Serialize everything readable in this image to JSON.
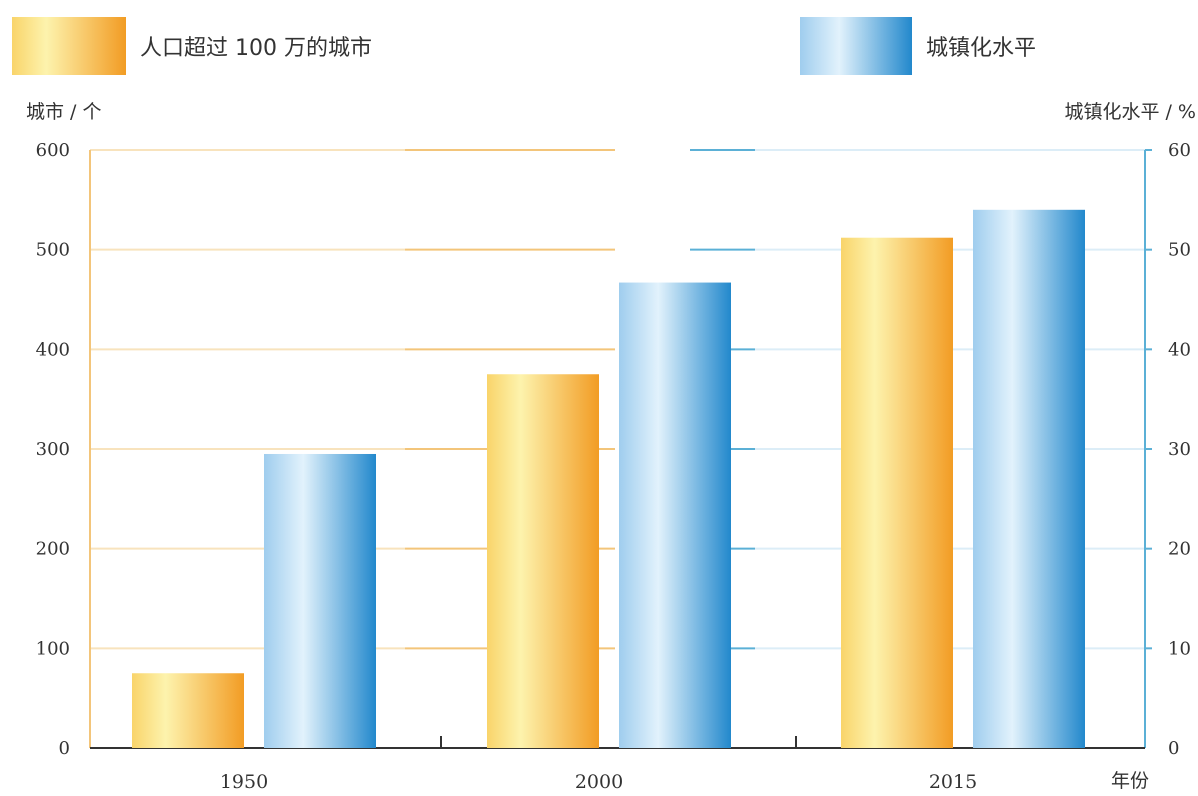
{
  "chart_data": {
    "type": "bar",
    "categories": [
      "1950",
      "2000",
      "2015"
    ],
    "series": [
      {
        "name": "人口超过 100 万的城市",
        "axis": "left",
        "values": [
          75,
          375,
          512
        ],
        "color_light": "#fdf0a0",
        "color_dark": "#f2a02a"
      },
      {
        "name": "城镇化水平",
        "axis": "right",
        "values": [
          29.5,
          46.7,
          54
        ],
        "color_light": "#dff0fb",
        "color_dark": "#2b8fd0"
      }
    ],
    "left_axis": {
      "label": "城市 / 个",
      "ylim": [
        0,
        600
      ],
      "ticks": [
        "0",
        "100",
        "200",
        "300",
        "400",
        "500",
        "600"
      ]
    },
    "right_axis": {
      "label": "城镇化水平 / %",
      "ylim": [
        0,
        60
      ],
      "ticks": [
        "0",
        "10",
        "20",
        "30",
        "40",
        "50",
        "60"
      ]
    },
    "xlabel": "年份",
    "grid": true,
    "legend_position": "top",
    "colors": {
      "left_axis": "#f3c57a",
      "right_axis": "#5bb0d6",
      "baseline": "#333333"
    }
  }
}
